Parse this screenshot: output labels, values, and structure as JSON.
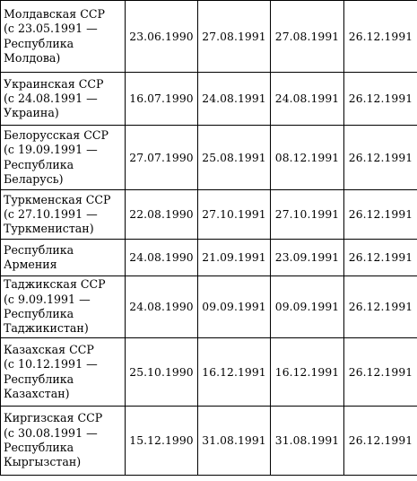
{
  "rows": [
    {
      "name": "Молдавская ССР\n(с 23.05.1991 —\nРеспублика\nМолдова)",
      "d1": "23.06.1990",
      "d2": "27.08.1991",
      "d3": "27.08.1991",
      "d4": "26.12.1991"
    },
    {
      "name": "Украинская ССР\n(с 24.08.1991 —\nУкраина)",
      "d1": "16.07.1990",
      "d2": "24.08.1991",
      "d3": "24.08.1991",
      "d4": "26.12.1991"
    },
    {
      "name": "Белорусская ССР\n(с 19.09.1991 —\nРеспублика\nБеларусь)",
      "d1": "27.07.1990",
      "d2": "25.08.1991",
      "d3": "08.12.1991",
      "d4": "26.12.1991"
    },
    {
      "name": "Туркменская ССР\n(с 27.10.1991 —\nТуркменистан)",
      "d1": "22.08.1990",
      "d2": "27.10.1991",
      "d3": "27.10.1991",
      "d4": "26.12.1991"
    },
    {
      "name": "Республика\nАрмения",
      "d1": "24.08.1990",
      "d2": "21.09.1991",
      "d3": "23.09.1991",
      "d4": "26.12.1991"
    },
    {
      "name": "Таджикская ССР\n(с 9.09.1991 —\nРеспублика\nТаджикистан)",
      "d1": "24.08.1990",
      "d2": "09.09.1991",
      "d3": "09.09.1991",
      "d4": "26.12.1991"
    },
    {
      "name": "Казахская ССР\n(с 10.12.1991 —\nРеспублика\nКазахстан)",
      "d1": "25.10.1990",
      "d2": "16.12.1991",
      "d3": "16.12.1991",
      "d4": "26.12.1991"
    },
    {
      "name": "Киргизская ССР\n(с 30.08.1991 —\nРеспублика\nКыргызстан)",
      "d1": "15.12.1990",
      "d2": "31.08.1991",
      "d3": "31.08.1991",
      "d4": "26.12.1991"
    }
  ]
}
